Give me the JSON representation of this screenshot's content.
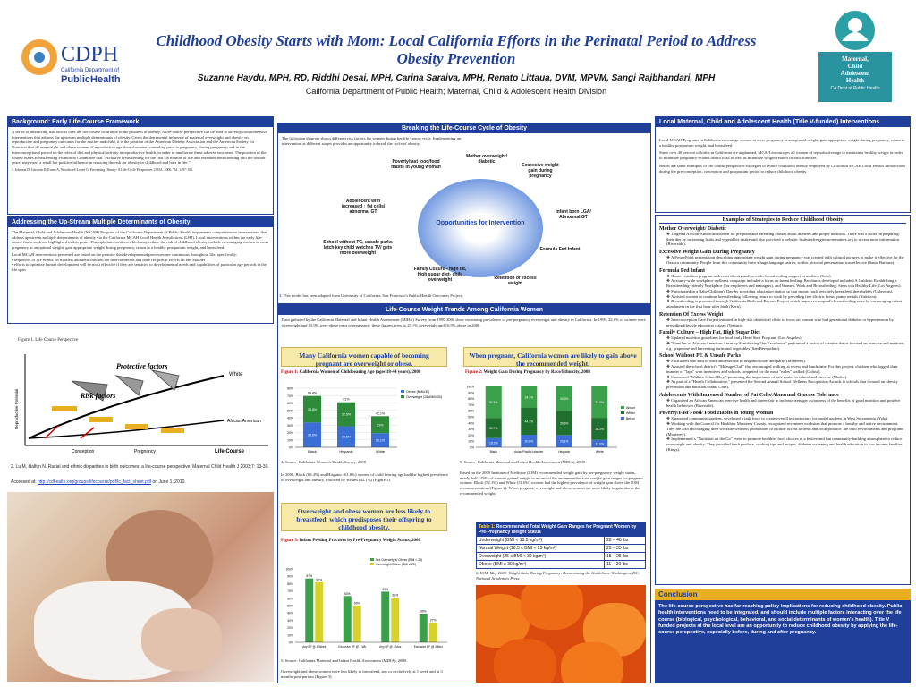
{
  "header": {
    "title": "Childhood Obesity Starts with Mom: Local California Efforts in the Perinatal Period to Address Obesity Prevention",
    "authors": "Suzanne Haydu, MPH, RD, Riddhi Desai, MPH, Carina Saraiva, MPH, Renato Littaua, DVM, MPVM, Sangi Rajbhandari, MPH",
    "affiliation": "California Department of Public Health; Maternal, Child & Adolescent Health Division"
  },
  "logos": {
    "cdph_text": "CDPH",
    "cdph_sub": "California Department of",
    "cdph_brand": "PublicHealth",
    "mcah_lines": [
      "Maternal,",
      "Child",
      "Adolescent",
      "Health"
    ],
    "mcah_sub": "CA Dept of Public Health"
  },
  "col1": {
    "bg_title": "Background: Early Life-Course Framework",
    "bg_text": "A series of interacting risk factors over the life-course contribute to the problem of obesity. A life-course perspective can be used to develop comprehensive interventions that address the upstream multiple determinants of obesity. Given the detrimental influence of maternal overweight and obesity on reproductive and pregnancy outcomes for the mother and child, it is the position of the American Dietetic Association and the American Society for Nutrition that all overweight and obese women of reproductive age should receive counseling prior to pregnancy, during pregnancy and in the interconceptional period on the roles of diet and physical activity in reproductive health, in order to ameliorate these adverse outcomes. The position of the United States Breastfeeding Promotion Committee that \"exclusive breastfeeding for the first six months of life and extended breastfeeding into the toddler years, may exert a small but positive influence in reducing the risk for obesity in childhood and later in life.\"",
    "bg_ref": "1. Johnson D, Gerstein D, Evans A, Woodward-Lopez G. Preventing Obesity: A Life-Cycle Perspective. JADA. 2006. Vol. 1: 97-102.",
    "up_title": "Addressing the Up-Stream Multiple Determinants of Obesity",
    "up_text1": "The Maternal, Child and Adolescent Health (MCAH) Program of the California Department of Public Health implements comprehensive interventions that address up-stream multiple determinants of obesity via the California MCAH Local Health Jurisdictions (LHJ). Local interventions within the early life-course framework are highlighted in this poster. Example interventions which may reduce the risk of childhood obesity include encouraging women to enter pregnancy at an optimal weight, gain appropriate weight during pregnancy, return to a healthy postpartum weight, and breastfeed.",
    "up_text2": "Local MCAH interventions presented are based on the premise that developmental processes are continuous throughout life, specifically:",
    "up_bullets": [
      "• sequences of life events for mothers and their children are interconnected and have reciprocal effects on one another",
      "• efforts to optimize human development will be most effective if they are sensitive to developmental needs and capabilities of particular age periods in the life span"
    ],
    "fig1_caption": "Figure 1. Life Course Perspective",
    "fig1_labels": {
      "white": "White",
      "protective": "Protective factors",
      "risk": "Risk factors",
      "aa": "African American",
      "x": [
        "Conception",
        "Pregnancy",
        "Life Course"
      ],
      "ylabel": "Reproductive Potential"
    },
    "ref2": "2. Lu M, Halfon N. Racial and ethnic disparities in birth outcomes: a life-course perspective. Maternal Child Health J 2003;7: 13-30.",
    "accessed_prefix": "Accessed at: ",
    "accessed_link": "http://cdhealth.org/groups/lifecourse/pdf/lc_fact_sheet.pdf",
    "accessed_suffix": " on June 1, 2010."
  },
  "col2": {
    "cycle_title": "Breaking the Life-Course Cycle of Obesity",
    "cycle_text": "The following diagram shows different risk factors for women during her life-course cycle. Implementing an intervention at different stages provides an opportunity to break the cycle of obesity.",
    "cycle_center": "Opportunities for Intervention",
    "cycle_nodes": [
      "Mother overweight/ diabetic",
      "Excessive weight gain during pregnancy",
      "Infant born LGA/ Abnormal GT",
      "Formula Fed Infant",
      "Retention of excess weight",
      "Family Culture - high fat, high sugar diet- child overweight",
      "School without PE, unsafe parks latch key child watches TV/ gets more overweight",
      "Adolescent with increased ↑ fat cells/ abnormal GT",
      "Poverty/fast food/food habits in young woman"
    ],
    "cycle_note": "3. This model has been adapted form University of California, San Francisco's Public Health Outcomes Project.",
    "trends_title": "Life-Course Weight Trends Among California Women",
    "trends_text": "Data gathered by the California Maternal and Infant Health Assessment (MIHA) Survey from 1999-2008 show increasing prevalence of pre-pregnancy overweight and obesity in California. In 1999, 22.6% of women were overweight and 13.9% were obese prior to pregnancy; these figures grew to 25.1% overweight and 16.9% obese in 2008.",
    "yellow1": "Many California women capable of becoming pregnant are overweight or obese.",
    "yellow2": "When pregnant, California women are likely to gain above the recommended weight.",
    "yellow3": "Overweight and obese women are less likely to breastfeed, which predisposes their offspring to childhood obesity.",
    "fig1_label": "Figure 1:",
    "fig1_title": "California Women of Childbearing Age (ages 18-44 years), 2008",
    "fig1_source": "4. Source: California Women's Health Survey, 2008",
    "fig1_text": "In 2008, Black (69.4%) and Hispanic (61.0%) women of child bearing age had the highest prevalence of overweight and obesity, followed by Whites (42.1%) (Figure 1).",
    "fig2_label": "Figure 2:",
    "fig2_title": "Weight Gain During Pregnancy by Race/Ethnicity, 2008",
    "fig2_source": "5. Source: California Maternal and Infant Health Assessment (MIHA), 2008.",
    "fig2_text": "Based on the 2009 Institute of Medicine (IOM) recommended weight gain by pre-pregnancy weight status, nearly half (43%) of women gained weight in excess of the recommended total weight gain ranges for pregnant women. Black (52.1%) and White (51.6%) women had the highest prevalence of weight gain above the IOM recommendations (Figure 2). When pregnant, overweight and obese women are more likely to gain above the recommended weight.",
    "fig3_label": "Figure 3:",
    "fig3_title": "Infant Feeding Practices by Pre-Pregnancy Weight Status, 2008",
    "fig3_source": "5. Source: California Maternal and Infant Health Assessment (MIHA), 2008.",
    "fig3_text": "Overweight and obese women were less likely to breastfeed, any or exclusively at 1 week and at 3 months post-partum (Figure 3).",
    "table_label": "Table 1:",
    "table_title": "Recommended Total Weight Gain Ranges for Pregnant Women by Pre-Pregnancy Weight Status",
    "table_rows": [
      [
        "Underweight (BMI < 18.5 kg/m²)",
        "28 – 40 lbs"
      ],
      [
        "Normal Weight (18.5 ≤ BMI < 25 kg/m²)",
        "25 – 35 lbs"
      ],
      [
        "Overweight (25 ≤ BMI < 30 kg/m²)",
        "15 – 25 lbs"
      ],
      [
        "Obese (BMI ≥ 30 kg/m²)",
        "11 – 20 lbs"
      ]
    ],
    "table_note": "6. IOM, May 2009. Weight Gain During Pregnancy: Reexamining the Guidelines. Washington, DC: National Academies Press."
  },
  "col3": {
    "lhj_title": "Local Maternal, Child and Adolescent Health (Title V-funded) Interventions",
    "lhj_text1": "Local MCAH Programs in California encourage women to enter pregnancy at an optimal weight, gain appropriate weight during pregnancy, return to a healthy postpartum weight, and breastfeed.",
    "lhj_text2": "Since over 40 percent of births in California are unplanned, MCAH encourages all women of reproductive age to maintain a healthy weight in order to minimize pregnancy-related health risks as well as minimize weight-related chronic illnesses.",
    "lhj_text3": "Below are some examples of life course perspective strategies to reduce childhood obesity employed by California MCAH Local Health Jurisdictions during the pre-conception, conception and postpartum period to reduce childhood obesity.",
    "ex_title": "Examples of Strategies to Reduce Childhood Obesity",
    "groups": [
      {
        "h": "Mother Overweight/ Diabetic",
        "items": [
          "Targeted African-American women for pregnant and parenting classes about diabetes and proper nutrition. There was a focus on preparing their diet by increasing fruits and vegetables intake and also provided a website: fruitsandveggiesmorematters.org to access more information (Riverside)."
        ]
      },
      {
        "h": "Excessive Weight Gain During Pregnancy",
        "items": [
          "A PowerPoint presentation describing appropriate weight gain during pregnancy was created with cultural pictures to make it effective for the Oaxaca community. People from this community have a huge language barrier, so this pictorial presentation was effective (Santa Barbara)."
        ]
      },
      {
        "h": "Formula Fed Infant",
        "items": [
          "Home visitation program addresses obesity and provides breastfeeding support to mothers (Solo).",
          "A county-wide workplace wellness campaign included a focus on breastfeeding. Brochures developed included A Guide to Establishing a Breastfeeding-friendly Workplace (for employers and managers), and Women, Work and Breastfeeding: Steps to a Healthy Life (Los Angeles).",
          "Participated in a Baby/Children's Day by providing a lactation station so that moms could privately breastfeed their babies (Calaveras).",
          "Assisted women to continue breastfeeding following return to work by providing free electric breast pump rentals (Siskiyou).",
          "Breastfeeding is promoted through California Birth and Beyond Project which improves hospital's breastfeeding rates by encouraging infant attachment in the first hour after birth (Kern)."
        ]
      },
      {
        "h": "Retention Of Excess Weight",
        "items": [
          "Interconception Care Project initiated in high risk obstetrical clinic to focus on women who had gestational diabetes or hypertension by providing lifestyle education classes (Ventura)."
        ]
      },
      {
        "h": "Family Culture – High Fat, High Sugar Diet",
        "items": [
          "Updated nutrition guidelines for local early Head Start Program. (Los Angeles).",
          "\"Families of African-American Ancestry Manifesting Our Excellence\" performed a fusion of creative dance focused on exercise and nutrition, e.g. grapevine and harvesting fruits and vegetables (San Bernardino)."
        ]
      },
      {
        "h": "School Without PE & Unsafe Parks",
        "items": [
          "Facilitated safe area to walk and exercise in neighborhoods and parks (Monterey).",
          "Assisted the school district's \"Mileage Club\" that encouraged walking at recess and lunch time. For this project, children who logged their number of \"laps\" won incentives and schools competed for the most \"miles\" walked (Colusa).",
          "Sponsored \"Walk to School Day,\" promoting the importance of safe routes to school and exercise (Modoc).",
          "As part of a \"Health Collaborative,\" presented the Second Annual School Wellness Recognition Awards to schools that focused on obesity prevention and nutrition (Santa Cruz)."
        ]
      },
      {
        "h": "Adolescents With Increased Number of Fat Cells/Abnormal Glucose Tolerance",
        "items": [
          "Organized an African American teen-eye health and career fair to increase teenager awareness of the benefits of good nutrition and positive health behaviors (Riverside)."
        ]
      },
      {
        "h": "Poverty/Fast Food/ Food Habits in Young Woman",
        "items": [
          "Supported community gardens, developed a task force to create overall infrastructure for model gardens in West Sacramento (Yolo).",
          "Working with the Council for Healthier Monterey County, recognized seventeen worksites that promote a healthy and active environment. They are also encouraging their worksite wellness promotions to include access to fresh and local produce, the built environments and programs (Monterey).",
          "Implemented a \"Nutrition on the Go\" event to promote healthier food choices in a festive and fun community-building atmosphere to reduce overweight and obesity. They provided fresh produce, cooking tips and recipes, diabetes screening and health education to low income families (Kings)."
        ]
      }
    ],
    "conc_title": "Conclusion",
    "conc_text": "The life-course perspective has far-reaching policy implications for reducing childhood obesity. Public health interventions need to be integrated, and should include multiple factors interacting over the life course (biological, psychological, behavioral, and social determinants of women's health). Title V funded projects at the local level are an opportunity to reduce childhood obesity by applying the life-course perspective, especially before, during and after pregnancy."
  },
  "chart_data": [
    {
      "type": "bar",
      "title": "California Women of Childbearing Age (ages 18-44 years), 2008",
      "categories": [
        "Black",
        "Hispanic",
        "White"
      ],
      "series": [
        {
          "name": "Obese (BMI≥30)",
          "values": [
            33.6,
            28.5,
            19.1
          ]
        },
        {
          "name": "Overweight (25≤BMI<30)",
          "values": [
            35.8,
            32.5,
            23.0
          ]
        }
      ],
      "totals": [
        69.4,
        61.0,
        42.1
      ],
      "ylim": [
        0,
        80
      ],
      "colors": {
        "obese": "#3b6fd6",
        "overweight": "#2e8b3a"
      }
    },
    {
      "type": "bar",
      "title": "Weight Gain During Pregnancy by Race/Ethnicity, 2008",
      "categories": [
        "Black",
        "Asian/Pacific Islander",
        "Hispanic",
        "White"
      ],
      "series": [
        {
          "name": "Above",
          "values": [
            52.1,
            34.7,
            40.3,
            51.6
          ]
        },
        {
          "name": "Within",
          "values": [
            32.7,
            44.7,
            39.6,
            36.2
          ]
        },
        {
          "name": "Below",
          "values": [
            15.2,
            20.6,
            20.1,
            12.2
          ]
        }
      ],
      "ylim": [
        0,
        100
      ],
      "ylabel_ticks": [
        "0%",
        "10%",
        "20%",
        "30%",
        "40%",
        "50%",
        "60%",
        "70%",
        "80%",
        "90%",
        "100%"
      ],
      "colors": {
        "above": "#3aa14a",
        "within": "#1f6f2e",
        "below": "#3b6fd6"
      }
    },
    {
      "type": "bar",
      "title": "Infant Feeding Practices by Pre-Pregnancy Weight Status, 2008",
      "categories": [
        "Any BF @ 1 Week",
        "Exclusive BF @ 1 Wk",
        "Any BF @ 3 Mos",
        "Exclusive BF @ 3 Mos"
      ],
      "series": [
        {
          "name": "Not Overweight/ Obese (BMI < 25)",
          "values": [
            87,
            63,
            69,
            39
          ]
        },
        {
          "name": "Overweight/Obese (BMI ≥ 25)",
          "values": [
            82,
            50,
            61,
            27
          ]
        }
      ],
      "ylim": [
        0,
        100
      ],
      "colors": {
        "not": "#3aa14a",
        "ow": "#d6d22a"
      }
    }
  ]
}
